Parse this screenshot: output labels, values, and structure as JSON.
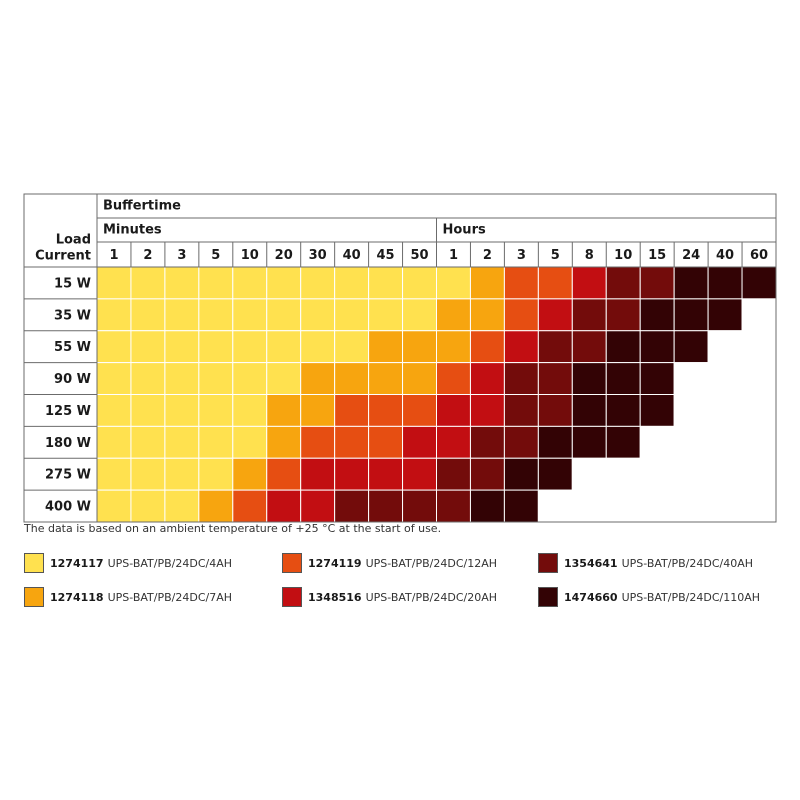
{
  "chart_data": {
    "type": "heatmap",
    "header": {
      "row_label_line1": "Load",
      "row_label_line2": "Current",
      "top": "Buffertime",
      "group_minutes": "Minutes",
      "group_hours": "Hours"
    },
    "columns": [
      {
        "label": "1",
        "group": "Minutes"
      },
      {
        "label": "2",
        "group": "Minutes"
      },
      {
        "label": "3",
        "group": "Minutes"
      },
      {
        "label": "5",
        "group": "Minutes"
      },
      {
        "label": "10",
        "group": "Minutes"
      },
      {
        "label": "20",
        "group": "Minutes"
      },
      {
        "label": "30",
        "group": "Minutes"
      },
      {
        "label": "40",
        "group": "Minutes"
      },
      {
        "label": "45",
        "group": "Minutes"
      },
      {
        "label": "50",
        "group": "Minutes"
      },
      {
        "label": "1",
        "group": "Hours"
      },
      {
        "label": "2",
        "group": "Hours"
      },
      {
        "label": "3",
        "group": "Hours"
      },
      {
        "label": "5",
        "group": "Hours"
      },
      {
        "label": "8",
        "group": "Hours"
      },
      {
        "label": "10",
        "group": "Hours"
      },
      {
        "label": "15",
        "group": "Hours"
      },
      {
        "label": "24",
        "group": "Hours"
      },
      {
        "label": "40",
        "group": "Hours"
      },
      {
        "label": "60",
        "group": "Hours"
      }
    ],
    "rows": [
      "15 W",
      "35 W",
      "55 W",
      "90 W",
      "125 W",
      "180 W",
      "275 W",
      "400 W"
    ],
    "cells": [
      [
        1,
        1,
        1,
        1,
        1,
        1,
        1,
        1,
        1,
        1,
        1,
        2,
        3,
        3,
        4,
        5,
        5,
        6,
        6,
        6
      ],
      [
        1,
        1,
        1,
        1,
        1,
        1,
        1,
        1,
        1,
        1,
        2,
        2,
        3,
        4,
        5,
        5,
        6,
        6,
        6,
        0
      ],
      [
        1,
        1,
        1,
        1,
        1,
        1,
        1,
        1,
        2,
        2,
        2,
        3,
        4,
        5,
        5,
        6,
        6,
        6,
        0,
        0
      ],
      [
        1,
        1,
        1,
        1,
        1,
        1,
        2,
        2,
        2,
        2,
        3,
        4,
        5,
        5,
        6,
        6,
        6,
        0,
        0,
        0
      ],
      [
        1,
        1,
        1,
        1,
        1,
        2,
        2,
        3,
        3,
        3,
        4,
        4,
        5,
        5,
        6,
        6,
        6,
        0,
        0,
        0
      ],
      [
        1,
        1,
        1,
        1,
        1,
        2,
        3,
        3,
        3,
        4,
        4,
        5,
        5,
        6,
        6,
        6,
        0,
        0,
        0,
        0
      ],
      [
        1,
        1,
        1,
        1,
        2,
        3,
        4,
        4,
        4,
        4,
        5,
        5,
        6,
        6,
        0,
        0,
        0,
        0,
        0,
        0
      ],
      [
        1,
        1,
        1,
        2,
        3,
        4,
        4,
        5,
        5,
        5,
        5,
        6,
        6,
        0,
        0,
        0,
        0,
        0,
        0,
        0
      ]
    ],
    "legend": [
      {
        "level": 1,
        "code": "1274117",
        "name": "UPS-BAT/PB/24DC/4AH",
        "color": "#FFE14F"
      },
      {
        "level": 2,
        "code": "1274118",
        "name": "UPS-BAT/PB/24DC/7AH",
        "color": "#F7A50F"
      },
      {
        "level": 3,
        "code": "1274119",
        "name": "UPS-BAT/PB/24DC/12AH",
        "color": "#E64E12"
      },
      {
        "level": 4,
        "code": "1348516",
        "name": "UPS-BAT/PB/24DC/20AH",
        "color": "#C20E12"
      },
      {
        "level": 5,
        "code": "1354641",
        "name": "UPS-BAT/PB/24DC/40AH",
        "color": "#730C0B"
      },
      {
        "level": 6,
        "code": "1474660",
        "name": "UPS-BAT/PB/24DC/110AH",
        "color": "#330305"
      }
    ],
    "empty_color": "#FFFFFF",
    "note": "The data is based on an ambient temperature of +25 °C at the start of use."
  }
}
